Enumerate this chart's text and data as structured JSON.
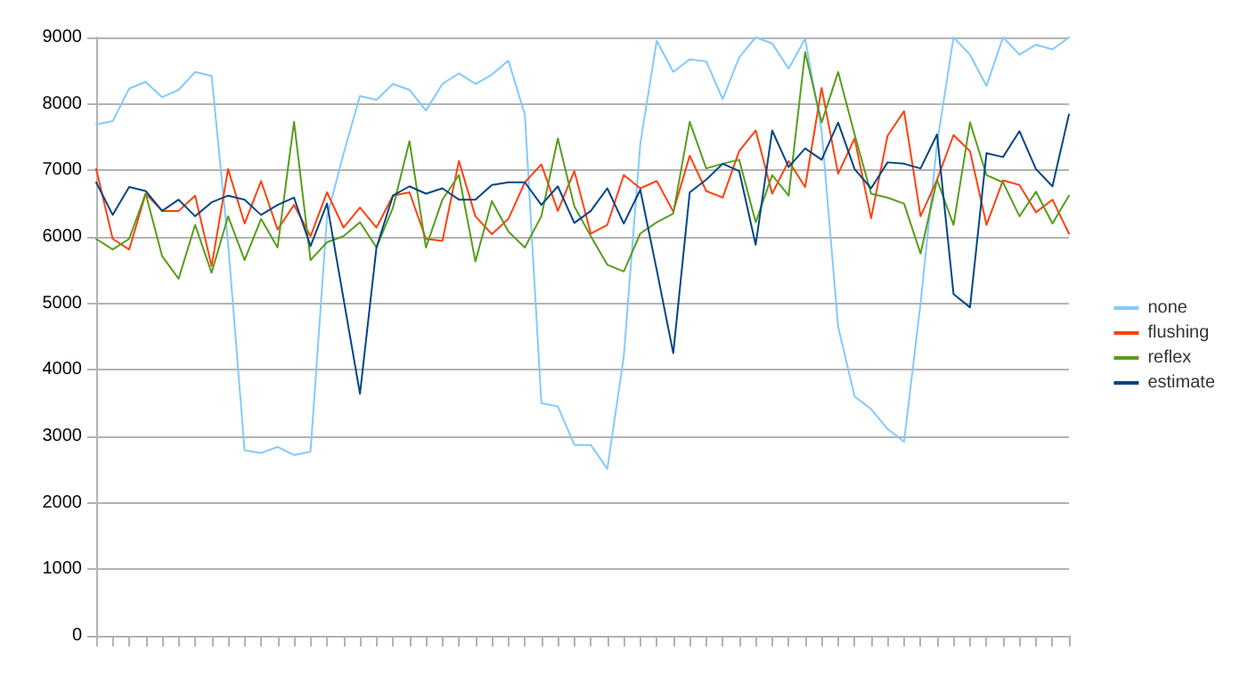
{
  "chart_data": {
    "type": "line",
    "categories": [
      null,
      null,
      null,
      null,
      null,
      null,
      null,
      null,
      null,
      null,
      null,
      null,
      null,
      null,
      null,
      null,
      null,
      null,
      null,
      null,
      null,
      null,
      null,
      null,
      null,
      null,
      null,
      null,
      null,
      null,
      null,
      null,
      null,
      null,
      null,
      null,
      null,
      null,
      null,
      null,
      null,
      null,
      null,
      null,
      null,
      null,
      null,
      null,
      null,
      null,
      null,
      null,
      null,
      null,
      null,
      null,
      null,
      null,
      null,
      null
    ],
    "series": [
      {
        "name": "none",
        "color": "#83caff",
        "values": [
          7690,
          7740,
          8230,
          8330,
          8100,
          8210,
          8480,
          8420,
          5900,
          2790,
          2750,
          2840,
          2720,
          2770,
          6300,
          7250,
          8120,
          8060,
          8300,
          8210,
          7900,
          8300,
          8460,
          8300,
          8440,
          8650,
          7840,
          3500,
          3450,
          2870,
          2870,
          2510,
          4200,
          7400,
          8950,
          8480,
          8670,
          8640,
          8070,
          8700,
          9000,
          8910,
          8530,
          8980,
          7600,
          4650,
          3600,
          3410,
          3110,
          2920,
          5000,
          7400,
          9000,
          8740,
          8270,
          9000,
          8740,
          8890,
          8820,
          9000
        ]
      },
      {
        "name": "flushing",
        "color": "#ff420e",
        "values": [
          7020,
          5970,
          5810,
          6650,
          6390,
          6390,
          6620,
          5560,
          7020,
          6200,
          6840,
          6110,
          6480,
          6010,
          6670,
          6140,
          6440,
          6140,
          6620,
          6670,
          5970,
          5940,
          7140,
          6310,
          6040,
          6270,
          6820,
          7090,
          6390,
          6990,
          6050,
          6180,
          6930,
          6730,
          6840,
          6380,
          7220,
          6690,
          6590,
          7290,
          7600,
          6650,
          7140,
          6750,
          8240,
          6950,
          7480,
          6280,
          7520,
          7890,
          6310,
          6860,
          7530,
          7290,
          6180,
          6850,
          6780,
          6370,
          6560,
          6050
        ]
      },
      {
        "name": "reflex",
        "color": "#579d1c",
        "values": [
          5970,
          5810,
          5970,
          6650,
          5710,
          5370,
          6180,
          5460,
          6310,
          5650,
          6270,
          5840,
          7730,
          5650,
          5920,
          6010,
          6220,
          5840,
          6440,
          7440,
          5840,
          6560,
          6930,
          5630,
          6540,
          6080,
          5840,
          6310,
          7480,
          6460,
          6010,
          5580,
          5480,
          6050,
          6220,
          6350,
          7730,
          7030,
          7100,
          7160,
          6220,
          6930,
          6620,
          8780,
          7720,
          8480,
          7540,
          6650,
          6590,
          6500,
          5750,
          6860,
          6180,
          7720,
          6930,
          6820,
          6310,
          6680,
          6200,
          6620
        ]
      },
      {
        "name": "estimate",
        "color": "#004586",
        "values": [
          6820,
          6330,
          6750,
          6690,
          6390,
          6560,
          6310,
          6520,
          6620,
          6560,
          6330,
          6480,
          6590,
          5860,
          6500,
          5070,
          3640,
          5840,
          6620,
          6760,
          6650,
          6730,
          6560,
          6560,
          6780,
          6820,
          6820,
          6480,
          6760,
          6210,
          6390,
          6730,
          6200,
          6710,
          5500,
          4250,
          6670,
          6860,
          7100,
          6990,
          5880,
          7600,
          7050,
          7330,
          7160,
          7720,
          7020,
          6730,
          7120,
          7100,
          7030,
          7540,
          5140,
          4940,
          7260,
          7200,
          7590,
          7020,
          6760,
          7840
        ]
      }
    ],
    "ylim": [
      0,
      9000
    ],
    "yticks": [
      0,
      1000,
      2000,
      3000,
      4000,
      5000,
      6000,
      7000,
      8000,
      9000
    ],
    "grid": "y",
    "legend": "right",
    "tick_labels": "y",
    "marker": "none",
    "line_style": "solid"
  }
}
